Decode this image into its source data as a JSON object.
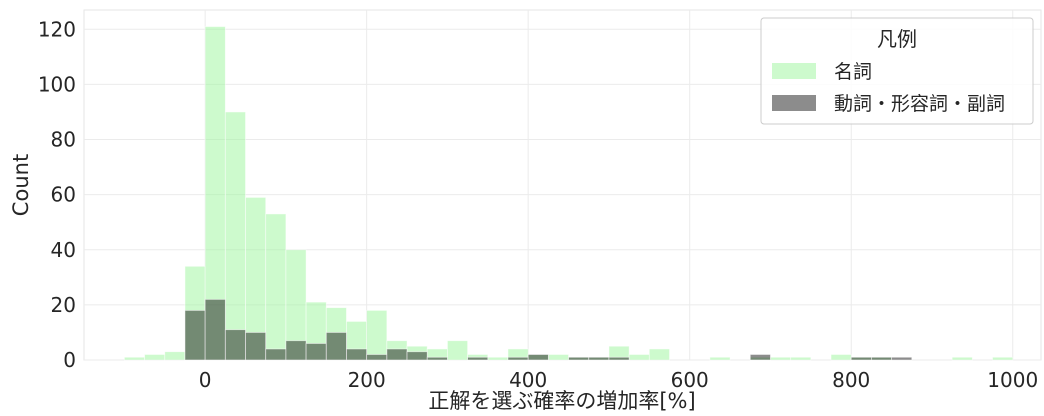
{
  "chart_data": {
    "type": "histogram",
    "xlabel": "正解を選ぶ確率の増加率[%]",
    "ylabel": "Count",
    "xlim": [
      -150,
      1035
    ],
    "ylim": [
      0,
      127
    ],
    "xticks": [
      0,
      200,
      400,
      600,
      800,
      1000
    ],
    "yticks": [
      0,
      20,
      40,
      60,
      80,
      100,
      120
    ],
    "grid": true,
    "bin_width": 25,
    "legend": {
      "title": "凡例",
      "position": "top-right"
    },
    "series": [
      {
        "name": "名詞",
        "color": "#9cf59c",
        "bins": [
          {
            "x0": -100,
            "x1": -75,
            "count": 1
          },
          {
            "x0": -75,
            "x1": -50,
            "count": 2
          },
          {
            "x0": -50,
            "x1": -25,
            "count": 3
          },
          {
            "x0": -25,
            "x1": 0,
            "count": 34
          },
          {
            "x0": 0,
            "x1": 25,
            "count": 121
          },
          {
            "x0": 25,
            "x1": 50,
            "count": 90
          },
          {
            "x0": 50,
            "x1": 75,
            "count": 59
          },
          {
            "x0": 75,
            "x1": 100,
            "count": 53
          },
          {
            "x0": 100,
            "x1": 125,
            "count": 40
          },
          {
            "x0": 125,
            "x1": 150,
            "count": 21
          },
          {
            "x0": 150,
            "x1": 175,
            "count": 19
          },
          {
            "x0": 175,
            "x1": 200,
            "count": 14
          },
          {
            "x0": 200,
            "x1": 225,
            "count": 18
          },
          {
            "x0": 225,
            "x1": 250,
            "count": 7
          },
          {
            "x0": 250,
            "x1": 275,
            "count": 5
          },
          {
            "x0": 275,
            "x1": 300,
            "count": 4
          },
          {
            "x0": 300,
            "x1": 325,
            "count": 7
          },
          {
            "x0": 325,
            "x1": 350,
            "count": 2
          },
          {
            "x0": 350,
            "x1": 375,
            "count": 1
          },
          {
            "x0": 375,
            "x1": 400,
            "count": 4
          },
          {
            "x0": 400,
            "x1": 425,
            "count": 2
          },
          {
            "x0": 425,
            "x1": 450,
            "count": 2
          },
          {
            "x0": 450,
            "x1": 475,
            "count": 1
          },
          {
            "x0": 475,
            "x1": 500,
            "count": 1
          },
          {
            "x0": 500,
            "x1": 525,
            "count": 5
          },
          {
            "x0": 525,
            "x1": 550,
            "count": 2
          },
          {
            "x0": 550,
            "x1": 575,
            "count": 4
          },
          {
            "x0": 575,
            "x1": 600,
            "count": 0
          },
          {
            "x0": 600,
            "x1": 625,
            "count": 0
          },
          {
            "x0": 625,
            "x1": 650,
            "count": 1
          },
          {
            "x0": 650,
            "x1": 675,
            "count": 0
          },
          {
            "x0": 675,
            "x1": 700,
            "count": 1
          },
          {
            "x0": 700,
            "x1": 725,
            "count": 1
          },
          {
            "x0": 725,
            "x1": 750,
            "count": 1
          },
          {
            "x0": 750,
            "x1": 775,
            "count": 0
          },
          {
            "x0": 775,
            "x1": 800,
            "count": 2
          },
          {
            "x0": 800,
            "x1": 825,
            "count": 1
          },
          {
            "x0": 825,
            "x1": 850,
            "count": 1
          },
          {
            "x0": 850,
            "x1": 875,
            "count": 0
          },
          {
            "x0": 875,
            "x1": 900,
            "count": 0
          },
          {
            "x0": 900,
            "x1": 925,
            "count": 0
          },
          {
            "x0": 925,
            "x1": 950,
            "count": 1
          },
          {
            "x0": 950,
            "x1": 975,
            "count": 0
          },
          {
            "x0": 975,
            "x1": 1000,
            "count": 1
          }
        ]
      },
      {
        "name": "動詞・形容詞・副詞",
        "color": "#1a1a1a",
        "bins": [
          {
            "x0": -25,
            "x1": 0,
            "count": 18
          },
          {
            "x0": 0,
            "x1": 25,
            "count": 22
          },
          {
            "x0": 25,
            "x1": 50,
            "count": 11
          },
          {
            "x0": 50,
            "x1": 75,
            "count": 10
          },
          {
            "x0": 75,
            "x1": 100,
            "count": 4
          },
          {
            "x0": 100,
            "x1": 125,
            "count": 7
          },
          {
            "x0": 125,
            "x1": 150,
            "count": 6
          },
          {
            "x0": 150,
            "x1": 175,
            "count": 10
          },
          {
            "x0": 175,
            "x1": 200,
            "count": 4
          },
          {
            "x0": 200,
            "x1": 225,
            "count": 2
          },
          {
            "x0": 225,
            "x1": 250,
            "count": 4
          },
          {
            "x0": 250,
            "x1": 275,
            "count": 3
          },
          {
            "x0": 275,
            "x1": 300,
            "count": 1
          },
          {
            "x0": 325,
            "x1": 350,
            "count": 1
          },
          {
            "x0": 375,
            "x1": 400,
            "count": 1
          },
          {
            "x0": 400,
            "x1": 425,
            "count": 2
          },
          {
            "x0": 450,
            "x1": 475,
            "count": 1
          },
          {
            "x0": 475,
            "x1": 500,
            "count": 1
          },
          {
            "x0": 500,
            "x1": 525,
            "count": 1
          },
          {
            "x0": 675,
            "x1": 700,
            "count": 2
          },
          {
            "x0": 800,
            "x1": 825,
            "count": 1
          },
          {
            "x0": 825,
            "x1": 850,
            "count": 1
          },
          {
            "x0": 850,
            "x1": 875,
            "count": 1
          }
        ]
      }
    ]
  }
}
